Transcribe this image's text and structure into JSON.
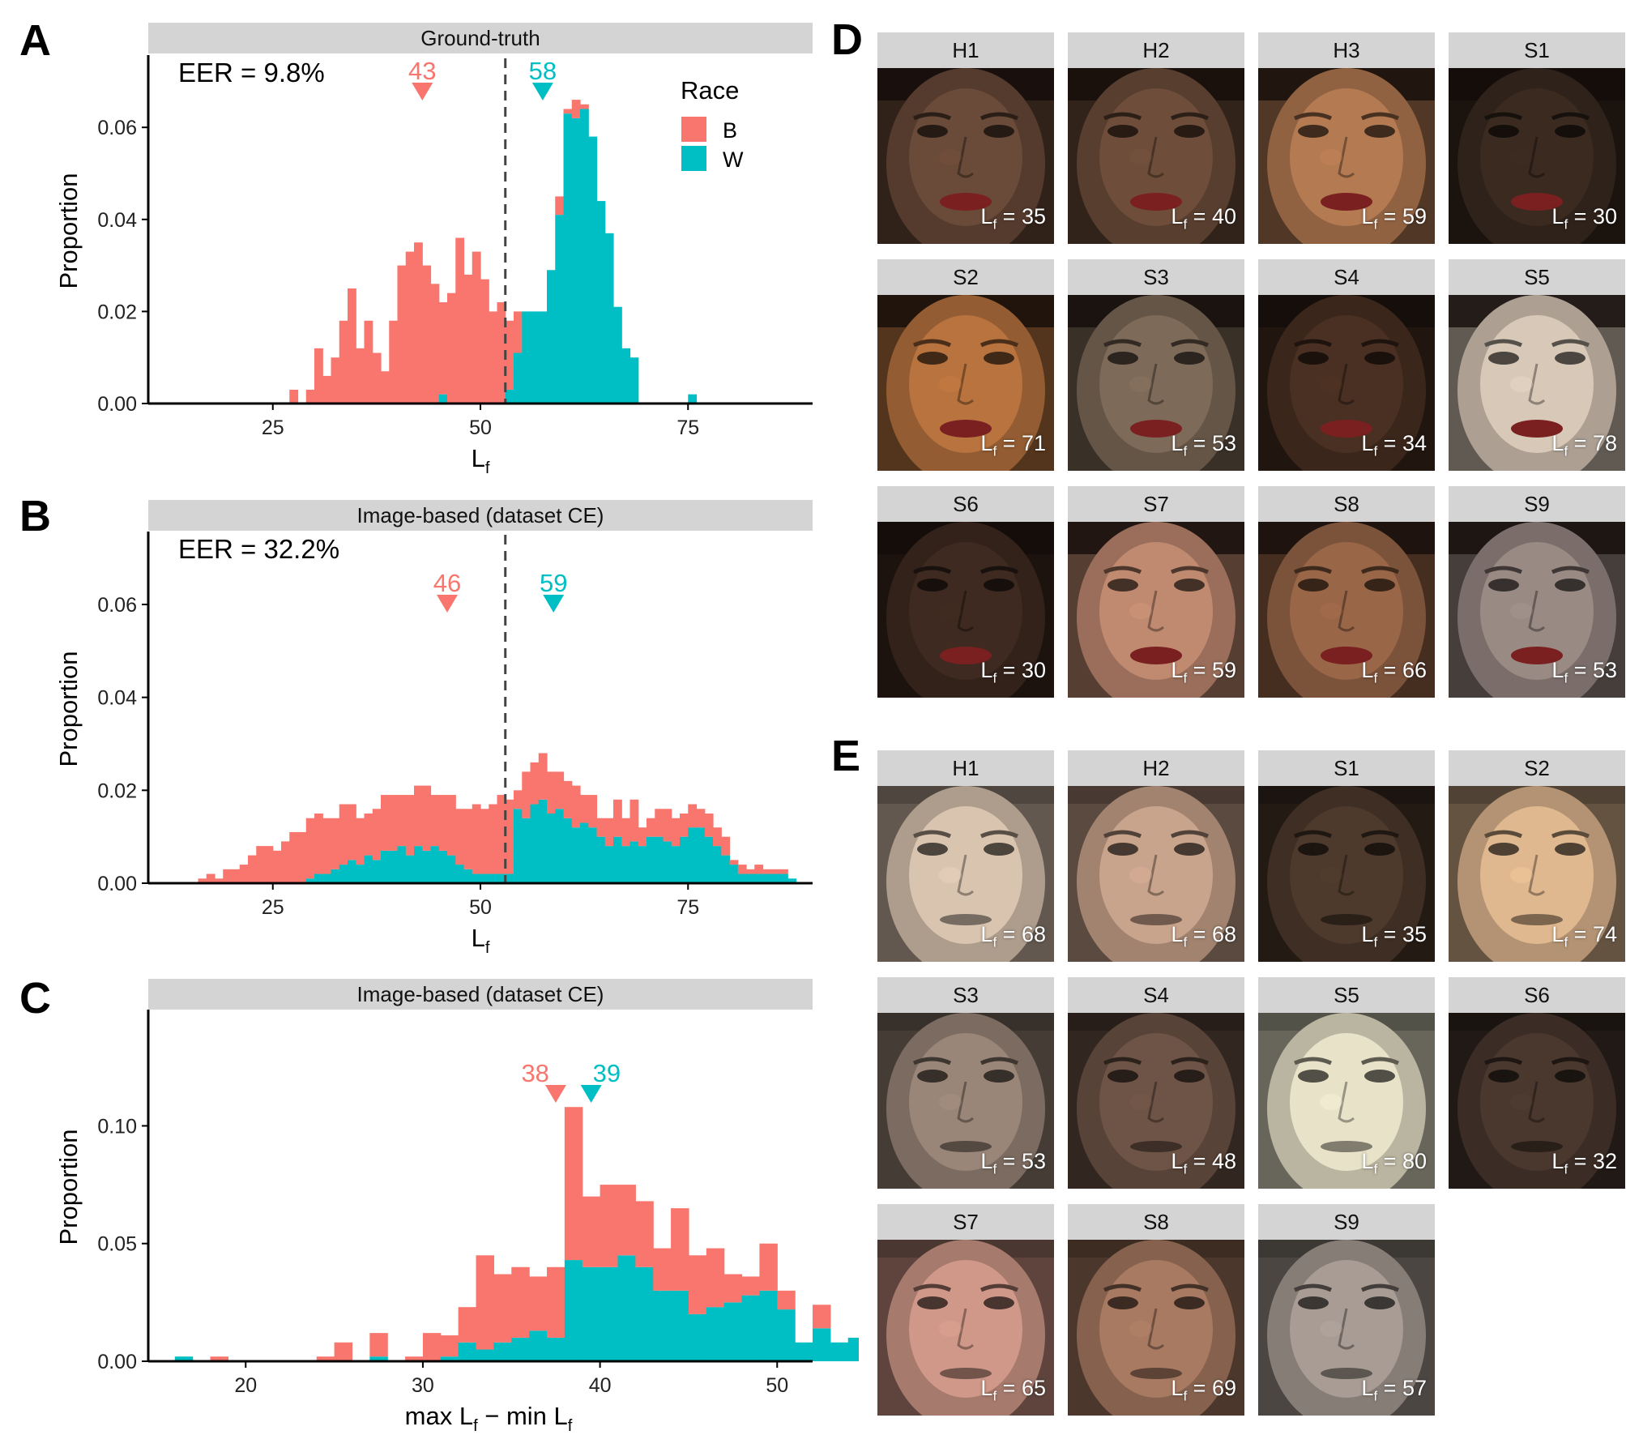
{
  "colors": {
    "B": "#F8766D",
    "W": "#00BFC4",
    "strip": "#d4d4d4",
    "dash": "#444444"
  },
  "panel_labels": [
    "A",
    "B",
    "C",
    "D",
    "E"
  ],
  "legend": {
    "title": "Race",
    "items": [
      {
        "key": "B",
        "color": "#F8766D"
      },
      {
        "key": "W",
        "color": "#00BFC4"
      }
    ]
  },
  "chart_data": [
    {
      "id": "A",
      "type": "bar",
      "stacked": true,
      "strip_title": "Ground-truth",
      "annotation": "EER = 9.8%",
      "ylabel": "Proportion",
      "xlabel_main": "L",
      "xlabel_sub": "f",
      "xlim": [
        10,
        90
      ],
      "ylim": [
        0,
        0.075
      ],
      "xticks": [
        25,
        50,
        75
      ],
      "yticks": [
        "0.00",
        "0.02",
        "0.04",
        "0.06"
      ],
      "yticks_values": [
        0,
        0.02,
        0.04,
        0.06
      ],
      "threshold": 53,
      "markers": [
        {
          "label": "43",
          "x": 43,
          "group": "B"
        },
        {
          "label": "58",
          "x": 57.5,
          "group": "W"
        }
      ],
      "bin_start": 27,
      "bin_width": 1,
      "series": [
        {
          "name": "W",
          "values": [
            0,
            0,
            0,
            0,
            0,
            0,
            0,
            0,
            0,
            0,
            0,
            0,
            0,
            0,
            0,
            0,
            0,
            0,
            0.002,
            0,
            0,
            0,
            0,
            0,
            0,
            0,
            0.003,
            0.011,
            0.02,
            0.02,
            0.02,
            0.029,
            0.041,
            0.063,
            0.062,
            0.064,
            0.058,
            0.044,
            0.037,
            0.021,
            0.012,
            0.01,
            0,
            0,
            0,
            0,
            0,
            0,
            0.002,
            0
          ]
        },
        {
          "name": "B",
          "values": [
            0.003,
            0,
            0.003,
            0.012,
            0.006,
            0.01,
            0.018,
            0.025,
            0.012,
            0.018,
            0.011,
            0.007,
            0.018,
            0.03,
            0.033,
            0.035,
            0.03,
            0.026,
            0.02,
            0.024,
            0.036,
            0.028,
            0.033,
            0.027,
            0.02,
            0.022,
            0.015,
            0.009,
            0,
            0,
            0,
            0,
            0.004,
            0.001,
            0.004,
            0.001,
            0,
            0,
            0,
            0,
            0,
            0,
            0,
            0,
            0,
            0,
            0,
            0,
            0,
            0
          ]
        }
      ]
    },
    {
      "id": "B",
      "type": "bar",
      "stacked": true,
      "strip_title": "Image-based (dataset CE)",
      "annotation": "EER = 32.2%",
      "ylabel": "Proportion",
      "xlabel_main": "L",
      "xlabel_sub": "f",
      "xlim": [
        10,
        90
      ],
      "ylim": [
        0,
        0.075
      ],
      "xticks": [
        25,
        50,
        75
      ],
      "yticks": [
        "0.00",
        "0.02",
        "0.04",
        "0.06"
      ],
      "yticks_values": [
        0,
        0.02,
        0.04,
        0.06
      ],
      "threshold": 53,
      "markers": [
        {
          "label": "46",
          "x": 46,
          "group": "B"
        },
        {
          "label": "59",
          "x": 58.8,
          "group": "W"
        }
      ],
      "bin_start": 16,
      "bin_width": 1,
      "series": [
        {
          "name": "W",
          "values": [
            0,
            0,
            0,
            0,
            0,
            0,
            0,
            0,
            0,
            0,
            0,
            0,
            0,
            0.001,
            0.002,
            0.002,
            0.003,
            0.004,
            0.005,
            0.004,
            0.006,
            0.005,
            0.007,
            0.007,
            0.008,
            0.006,
            0.008,
            0.007,
            0.008,
            0.007,
            0.006,
            0.004,
            0.003,
            0.002,
            0.002,
            0.002,
            0.002,
            0.002,
            0.016,
            0.014,
            0.017,
            0.018,
            0.015,
            0.016,
            0.014,
            0.012,
            0.013,
            0.012,
            0.01,
            0.008,
            0.01,
            0.008,
            0.009,
            0.008,
            0.01,
            0.01,
            0.009,
            0.008,
            0.01,
            0.012,
            0.012,
            0.01,
            0.008,
            0.006,
            0.004,
            0.002,
            0.002,
            0.002,
            0.002,
            0.002,
            0.002,
            0.001
          ]
        },
        {
          "name": "B",
          "values": [
            0.001,
            0.002,
            0.001,
            0.003,
            0.003,
            0.004,
            0.006,
            0.008,
            0.008,
            0.007,
            0.009,
            0.011,
            0.011,
            0.013,
            0.013,
            0.012,
            0.011,
            0.013,
            0.012,
            0.01,
            0.009,
            0.011,
            0.012,
            0.012,
            0.011,
            0.013,
            0.013,
            0.014,
            0.011,
            0.012,
            0.013,
            0.012,
            0.013,
            0.015,
            0.014,
            0.015,
            0.017,
            0.016,
            0.004,
            0.01,
            0.009,
            0.01,
            0.009,
            0.008,
            0.008,
            0.009,
            0.006,
            0.007,
            0.004,
            0.006,
            0.008,
            0.006,
            0.009,
            0.004,
            0.004,
            0.006,
            0.007,
            0.006,
            0.005,
            0.005,
            0.004,
            0.005,
            0.004,
            0.004,
            0.001,
            0.002,
            0.001,
            0.002,
            0.001,
            0.001,
            0.001,
            0
          ]
        }
      ]
    },
    {
      "id": "C",
      "type": "bar",
      "stacked": true,
      "strip_title": "Image-based (dataset CE)",
      "annotation": "",
      "ylabel": "Proportion",
      "xlabel_main": "max L",
      "xlabel_sub": "f",
      "xlabel_mid": " − min L",
      "xlabel_sub2": "f",
      "xlim": [
        14.5,
        52
      ],
      "ylim": [
        0,
        0.148
      ],
      "xticks": [
        20,
        30,
        40,
        50
      ],
      "yticks": [
        "0.00",
        "0.05",
        "0.10"
      ],
      "yticks_values": [
        0,
        0.05,
        0.1
      ],
      "threshold": null,
      "markers": [
        {
          "label": "38",
          "x": 37.5,
          "group": "B"
        },
        {
          "label": "39",
          "x": 39.5,
          "group": "W"
        }
      ],
      "bin_start": 16,
      "bin_width": 1,
      "series": [
        {
          "name": "W",
          "values": [
            0.002,
            0,
            0,
            0,
            0,
            0,
            0,
            0,
            0,
            0,
            0,
            0.002,
            0,
            0,
            0,
            0.002,
            0.008,
            0.005,
            0.008,
            0.01,
            0.013,
            0.01,
            0.043,
            0.04,
            0.04,
            0.045,
            0.04,
            0.03,
            0.03,
            0.02,
            0.023,
            0.025,
            0.028,
            0.03,
            0.022,
            0.008,
            0.014,
            0.008,
            0.01,
            0.01
          ]
        },
        {
          "name": "B",
          "values": [
            0,
            0,
            0.002,
            0,
            0,
            0,
            0,
            0,
            0.002,
            0.008,
            0,
            0.01,
            0,
            0.002,
            0.012,
            0.009,
            0.015,
            0.04,
            0.029,
            0.03,
            0.023,
            0.03,
            0.065,
            0.03,
            0.035,
            0.03,
            0.028,
            0.018,
            0.035,
            0.025,
            0.025,
            0.012,
            0.008,
            0.02,
            0.008,
            0,
            0.01,
            0,
            0,
            0
          ]
        }
      ]
    }
  ],
  "faces_D": [
    {
      "label": "H1",
      "lf": "35",
      "skin": "#6a4a38"
    },
    {
      "label": "H2",
      "lf": "40",
      "skin": "#6e4e3a"
    },
    {
      "label": "H3",
      "lf": "59",
      "skin": "#b47a52"
    },
    {
      "label": "S1",
      "lf": "30",
      "skin": "#3a2a20"
    },
    {
      "label": "S2",
      "lf": "71",
      "skin": "#b8733e"
    },
    {
      "label": "S3",
      "lf": "53",
      "skin": "#7e6a58"
    },
    {
      "label": "S4",
      "lf": "34",
      "skin": "#4a3022"
    },
    {
      "label": "S5",
      "lf": "78",
      "skin": "#d8c8b8"
    },
    {
      "label": "S6",
      "lf": "30",
      "skin": "#3e2a20"
    },
    {
      "label": "S7",
      "lf": "59",
      "skin": "#c08a70"
    },
    {
      "label": "S8",
      "lf": "66",
      "skin": "#9a6648"
    },
    {
      "label": "S9",
      "lf": "53",
      "skin": "#9a8a84"
    }
  ],
  "faces_E": [
    {
      "label": "H1",
      "lf": "68",
      "skin": "#d9c4b0"
    },
    {
      "label": "H2",
      "lf": "68",
      "skin": "#c9a48c"
    },
    {
      "label": "S1",
      "lf": "35",
      "skin": "#4e3a2c"
    },
    {
      "label": "S2",
      "lf": "74",
      "skin": "#e0b890"
    },
    {
      "label": "S3",
      "lf": "53",
      "skin": "#9a8678"
    },
    {
      "label": "S4",
      "lf": "48",
      "skin": "#6e5446"
    },
    {
      "label": "S5",
      "lf": "80",
      "skin": "#e8e2c8"
    },
    {
      "label": "S6",
      "lf": "32",
      "skin": "#4a382e"
    },
    {
      "label": "S7",
      "lf": "65",
      "skin": "#d09888"
    },
    {
      "label": "S8",
      "lf": "69",
      "skin": "#a87a62"
    },
    {
      "label": "S9",
      "lf": "57",
      "skin": "#a89c94"
    }
  ]
}
